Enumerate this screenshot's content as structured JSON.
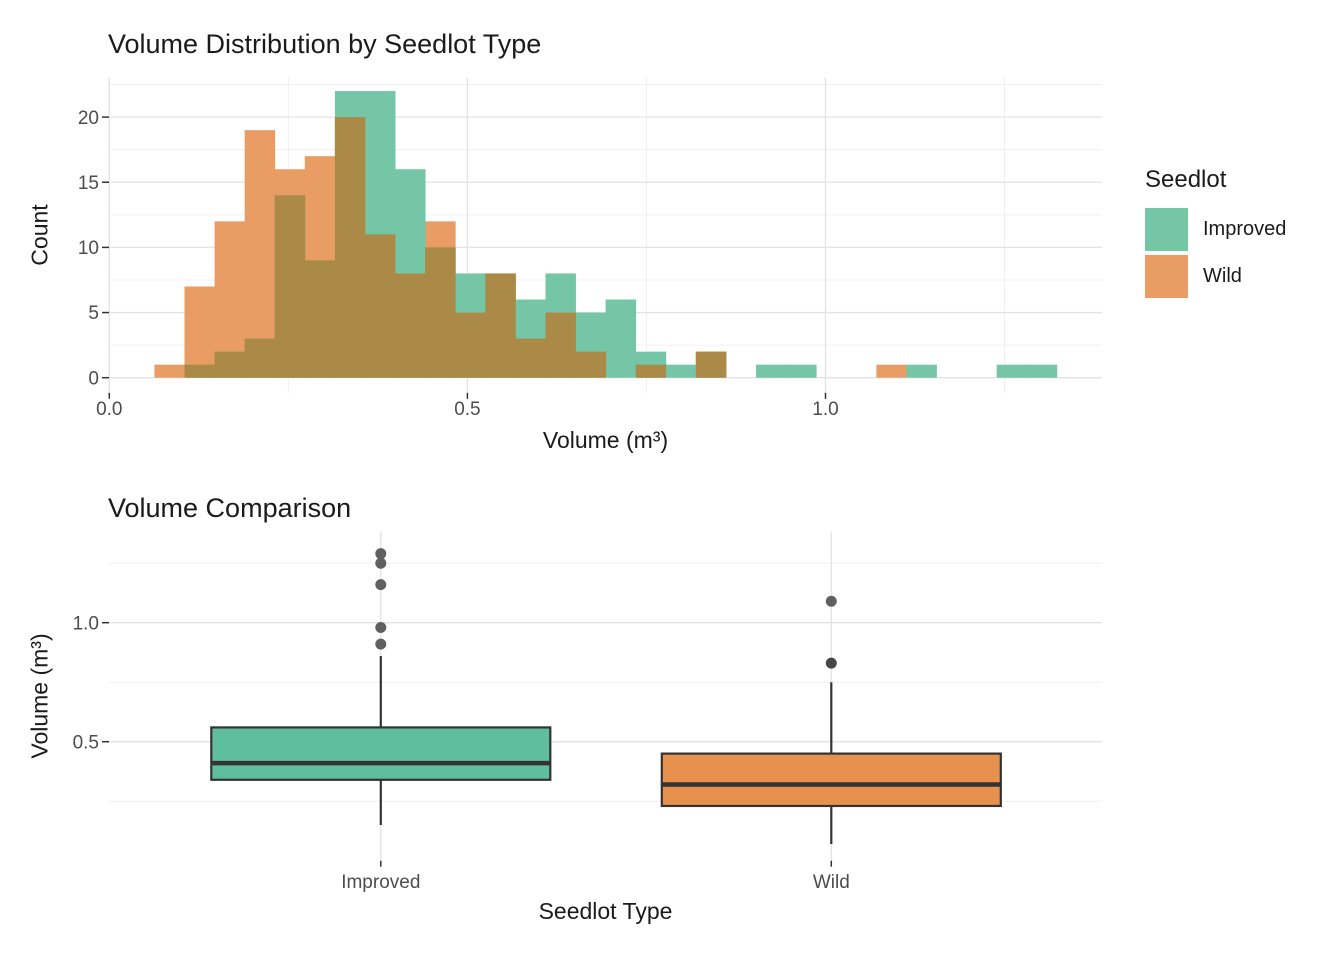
{
  "figure": {
    "background": "#FFFFFF"
  },
  "legend": {
    "title": "Seedlot",
    "items": [
      {
        "label": "Improved",
        "color": "#75C6A7"
      },
      {
        "label": "Wild",
        "color": "#E99C63"
      }
    ]
  },
  "chart_data": [
    {
      "type": "histogram",
      "title": "Volume Distribution by Seedlot Type",
      "xlabel": "Volume (m³)",
      "ylabel": "Count",
      "legend_title": "Seedlot",
      "legend_position": "right",
      "grid": true,
      "xlim": [
        0,
        1.386
      ],
      "ylim": [
        0,
        23.1
      ],
      "x_major_ticks": [
        0.0,
        0.5,
        1.0
      ],
      "x_tick_labels": [
        "0.0",
        "0.5",
        "1.0"
      ],
      "x_minor_ticks": [
        0.25,
        0.75,
        1.25
      ],
      "y_major_ticks": [
        0,
        5,
        10,
        15,
        20
      ],
      "y_minor_ticks": [
        2.5,
        7.5,
        12.5,
        17.5,
        22.5
      ],
      "bin_start": 0.063,
      "bin_width": 0.042,
      "series": [
        {
          "name": "Improved",
          "color": "#75C6A7",
          "counts": [
            0,
            1,
            2,
            3,
            14,
            9,
            22,
            22,
            16,
            10,
            8,
            8,
            6,
            8,
            5,
            6,
            2,
            1,
            2,
            0,
            1,
            1,
            0,
            0,
            0,
            1,
            0,
            0,
            1,
            1
          ]
        },
        {
          "name": "Wild",
          "color": "#E99C63",
          "counts": [
            1,
            7,
            12,
            19,
            16,
            17,
            20,
            11,
            8,
            12,
            5,
            8,
            3,
            5,
            2,
            0,
            1,
            0,
            2,
            0,
            0,
            0,
            0,
            0,
            1,
            0,
            0,
            0,
            0,
            0
          ]
        }
      ],
      "overlap_color": "#AB8A47"
    },
    {
      "type": "boxplot",
      "title": "Volume Comparison",
      "xlabel": "Seedlot Type",
      "ylabel": "Volume (m³)",
      "categories": [
        "Improved",
        "Wild"
      ],
      "ylim": [
        0,
        1.383
      ],
      "y_major_ticks": [
        0.5,
        1.0
      ],
      "y_tick_labels": [
        "0.5",
        "1.0"
      ],
      "y_minor_ticks": [
        0.25,
        0.75,
        1.25
      ],
      "box_border_color": "#333333",
      "boxes": [
        {
          "category": "Improved",
          "fill": "#5EBE9E",
          "whisker_low": 0.15,
          "q1": 0.34,
          "median": 0.41,
          "q3": 0.56,
          "whisker_high": 0.86,
          "outliers": [
            0.91,
            0.98,
            1.16,
            1.25,
            1.29
          ],
          "outlier_colors": [
            "#606060",
            "#606060",
            "#606060",
            "#606060",
            "#606060"
          ]
        },
        {
          "category": "Wild",
          "fill": "#E8914E",
          "whisker_low": 0.07,
          "q1": 0.23,
          "median": 0.32,
          "q3": 0.45,
          "whisker_high": 0.75,
          "outliers": [
            0.83,
            1.09
          ],
          "outlier_colors": [
            "#474747",
            "#606060"
          ]
        }
      ]
    }
  ]
}
